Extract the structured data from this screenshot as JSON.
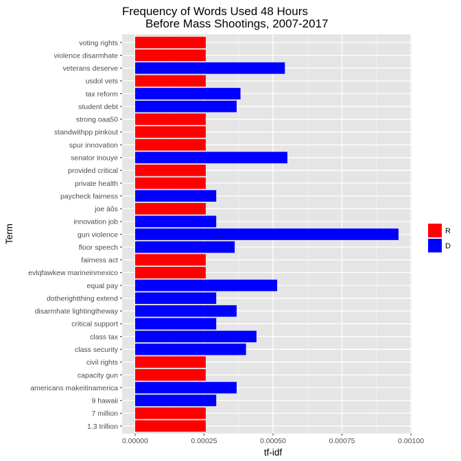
{
  "chart_data": {
    "type": "bar",
    "orientation": "horizontal",
    "title": [
      "Frequency of Words Used 48 Hours",
      "Before Mass Shootings, 2007-2017"
    ],
    "xlabel": "tf-idf",
    "ylabel": "Term",
    "xlim": [
      0,
      0.001
    ],
    "xticks": [
      "0.00000",
      "0.00025",
      "0.00050",
      "0.00075",
      "0.00100"
    ],
    "xtick_values": [
      0,
      0.00025,
      0.0005,
      0.00075,
      0.001
    ],
    "grid": true,
    "legend": {
      "position": "right",
      "entries": [
        {
          "label": "R",
          "color": "#ff0000"
        },
        {
          "label": "D",
          "color": "#0000ff"
        }
      ]
    },
    "colors": {
      "R": "#ff0000",
      "D": "#0000ff"
    },
    "bars": [
      {
        "term": "voting rights",
        "party": "R",
        "value": 0.000256
      },
      {
        "term": "violence disarmhate",
        "party": "R",
        "value": 0.000256
      },
      {
        "term": "veterans deserve",
        "party": "D",
        "value": 0.000543
      },
      {
        "term": "usdol vets",
        "party": "R",
        "value": 0.000256
      },
      {
        "term": "tax reform",
        "party": "D",
        "value": 0.000382
      },
      {
        "term": "student debt",
        "party": "D",
        "value": 0.000368
      },
      {
        "term": "strong oaa50",
        "party": "R",
        "value": 0.000256
      },
      {
        "term": "standwithpp pinkout",
        "party": "R",
        "value": 0.000256
      },
      {
        "term": "spur innovation",
        "party": "R",
        "value": 0.000256
      },
      {
        "term": "senator inouye",
        "party": "D",
        "value": 0.000552
      },
      {
        "term": "provided critical",
        "party": "R",
        "value": 0.000256
      },
      {
        "term": "private health",
        "party": "R",
        "value": 0.000256
      },
      {
        "term": "paycheck fairness",
        "party": "D",
        "value": 0.000294
      },
      {
        "term": "joe äôs",
        "party": "R",
        "value": 0.000256
      },
      {
        "term": "innovation job",
        "party": "D",
        "value": 0.000294
      },
      {
        "term": "gun violence",
        "party": "D",
        "value": 0.000955
      },
      {
        "term": "floor speech",
        "party": "D",
        "value": 0.000361
      },
      {
        "term": "fairness act",
        "party": "R",
        "value": 0.000256
      },
      {
        "term": "evlqfawkew marineinmexico",
        "party": "R",
        "value": 0.000256
      },
      {
        "term": "equal pay",
        "party": "D",
        "value": 0.000515
      },
      {
        "term": "dotherightthing extend",
        "party": "D",
        "value": 0.000294
      },
      {
        "term": "disarmhate lightingtheway",
        "party": "D",
        "value": 0.000368
      },
      {
        "term": "critical support",
        "party": "D",
        "value": 0.000294
      },
      {
        "term": "class tax",
        "party": "D",
        "value": 0.00044
      },
      {
        "term": "class security",
        "party": "D",
        "value": 0.000402
      },
      {
        "term": "civil rights",
        "party": "R",
        "value": 0.000256
      },
      {
        "term": "capacity gun",
        "party": "R",
        "value": 0.000256
      },
      {
        "term": "americans makeitinamerica",
        "party": "D",
        "value": 0.000368
      },
      {
        "term": "9 hawaii",
        "party": "D",
        "value": 0.000294
      },
      {
        "term": "7 million",
        "party": "R",
        "value": 0.000256
      },
      {
        "term": "1.3 trillion",
        "party": "R",
        "value": 0.000256
      }
    ]
  }
}
